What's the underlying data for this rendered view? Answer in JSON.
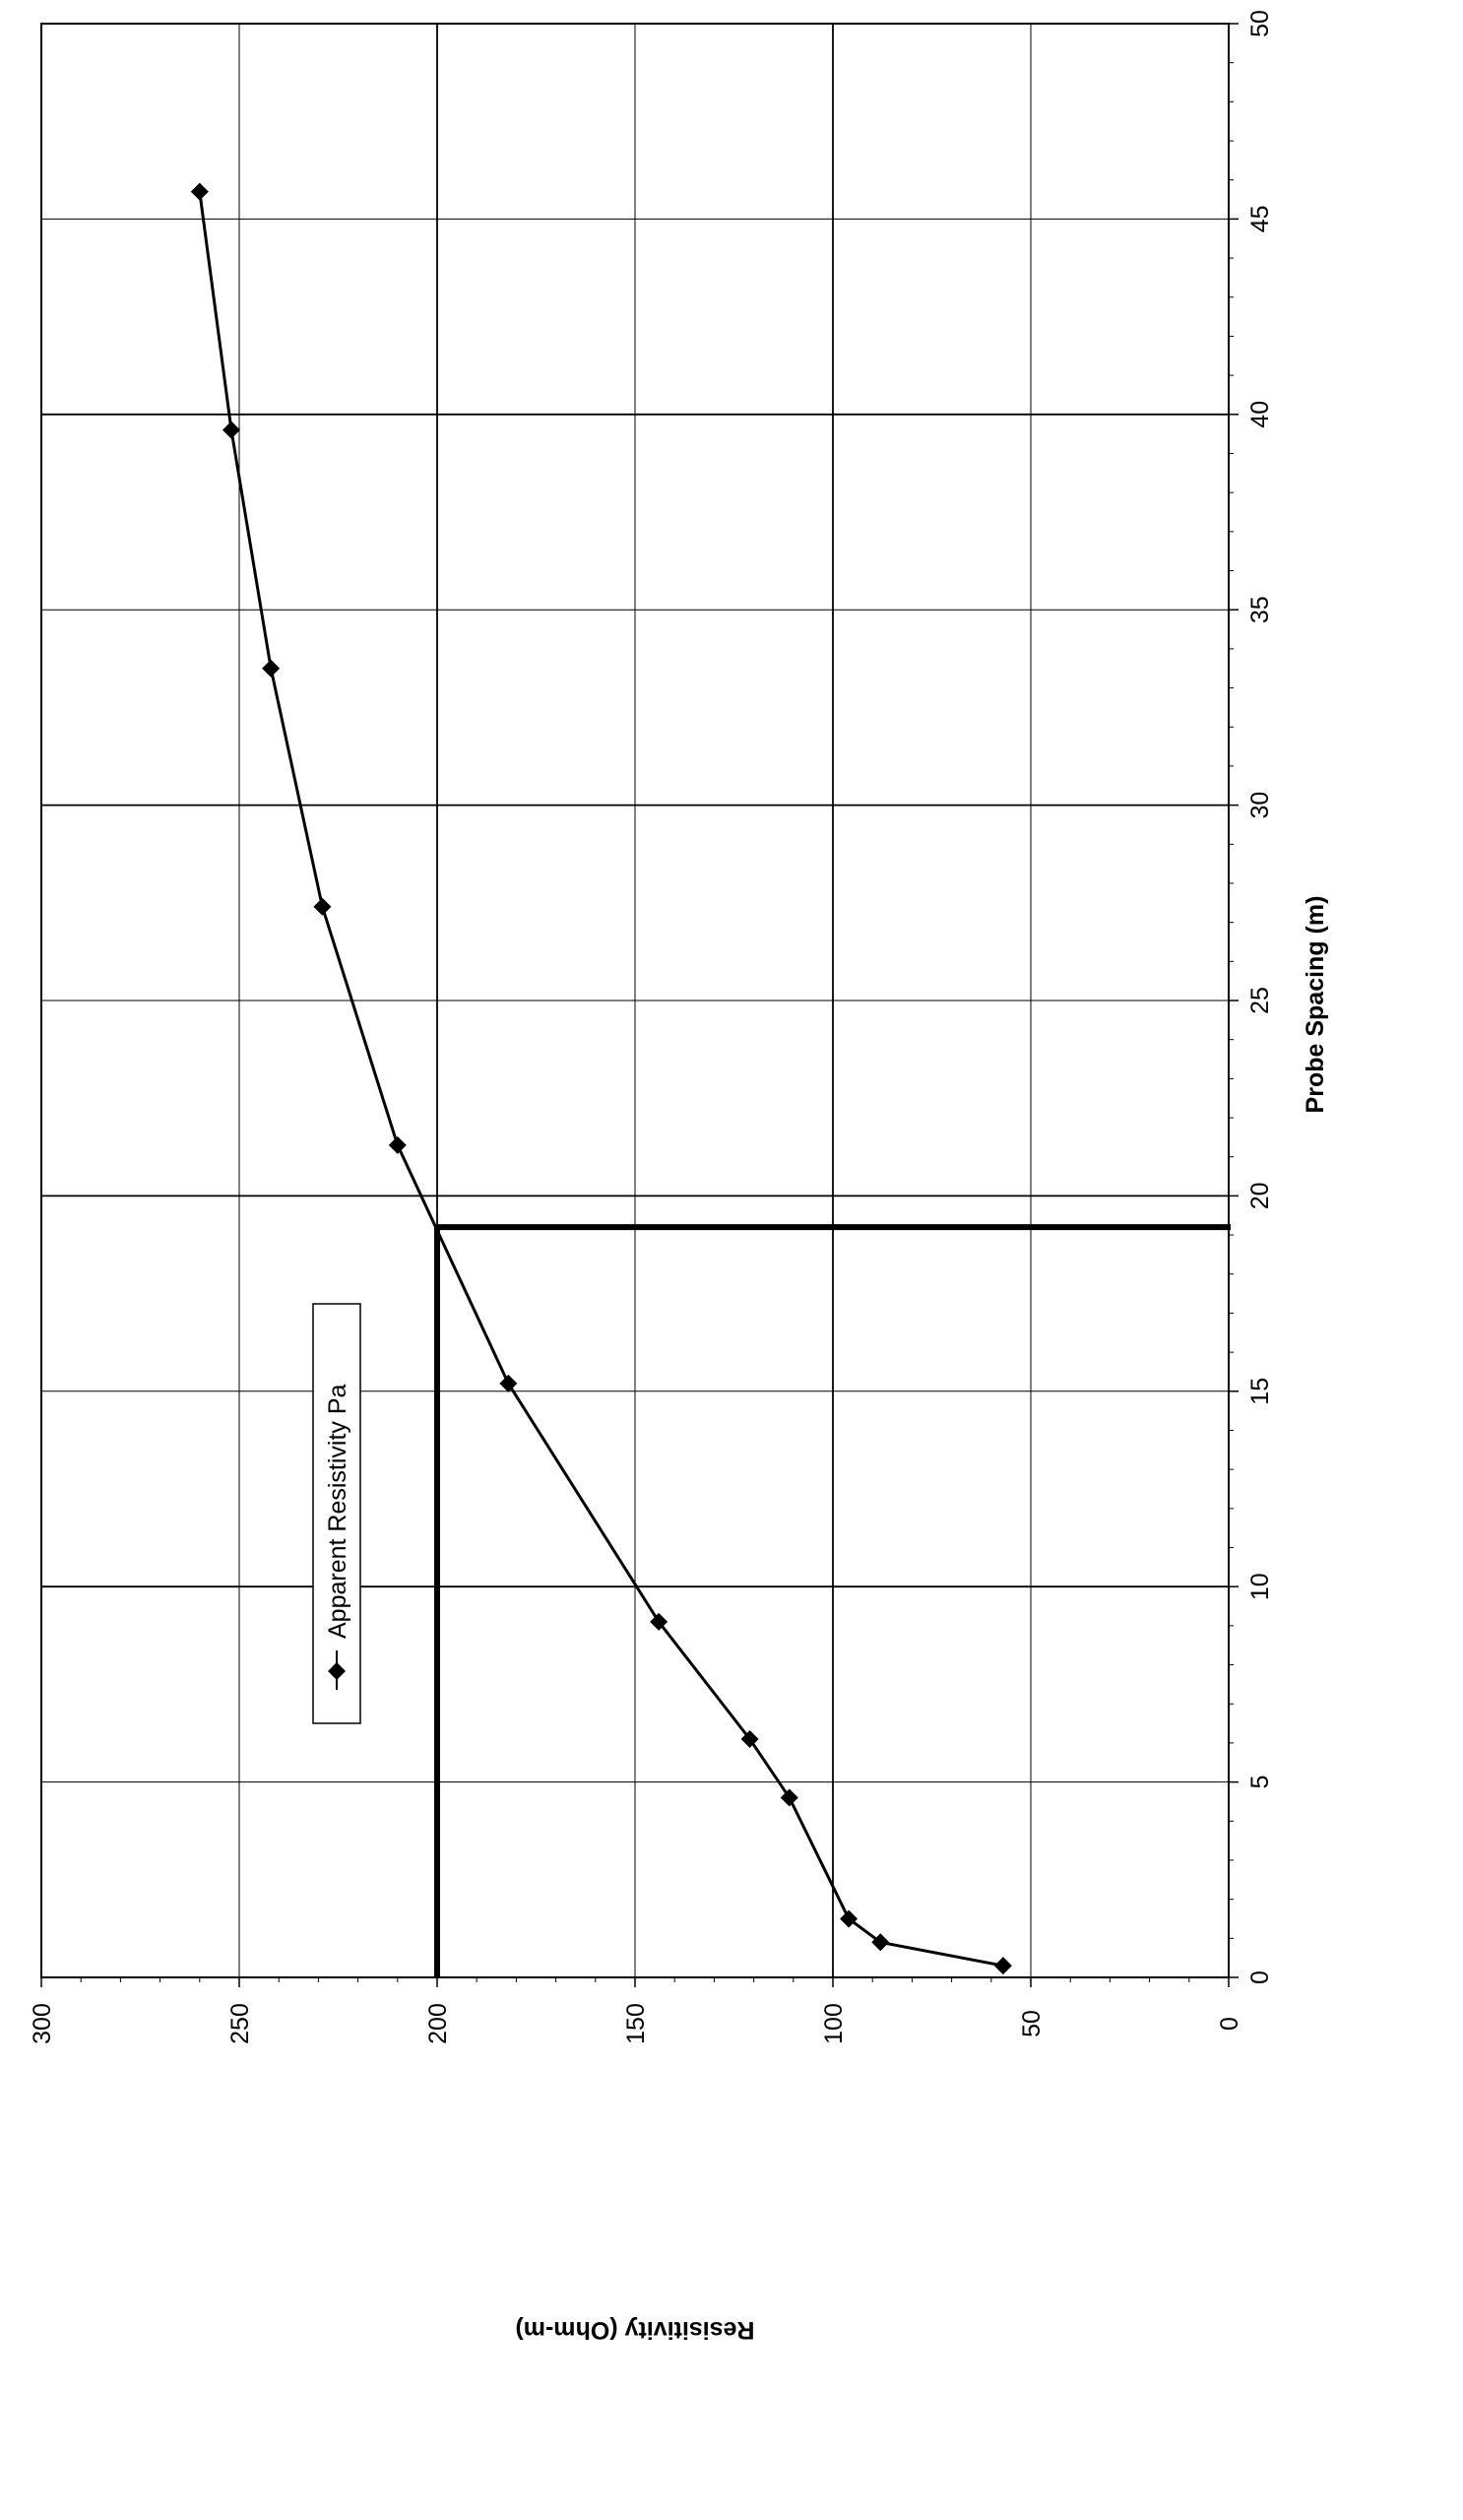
{
  "chart_data": {
    "type": "line",
    "title": "",
    "xlabel": "Probe Spacing (m)",
    "ylabel": "Resisitivity (Ohm-m)",
    "xlim": [
      0,
      50
    ],
    "ylim": [
      0,
      300
    ],
    "x_ticks": [
      "0",
      "5",
      "10",
      "15",
      "20",
      "25",
      "30",
      "35",
      "40",
      "45",
      "50"
    ],
    "y_ticks": [
      "0",
      "50",
      "100",
      "150",
      "200",
      "250",
      "300"
    ],
    "grid": true,
    "orientation": "rotated 90° clockwise (probe spacing along the right edge, resistivity along the bottom)",
    "legend_position": "center-left",
    "series": [
      {
        "name": "Apparent Resistivity Pa",
        "marker": "diamond",
        "color": "#000000",
        "x": [
          0.3,
          0.9,
          1.5,
          4.6,
          6.1,
          9.1,
          15.2,
          21.3,
          27.4,
          33.5,
          39.6,
          45.7
        ],
        "y": [
          57,
          88,
          96,
          111,
          121,
          144,
          182,
          210,
          229,
          242,
          252,
          260
        ]
      }
    ],
    "reference_lines": {
      "resistivity": 200,
      "probe_spacing": 19.2
    }
  }
}
